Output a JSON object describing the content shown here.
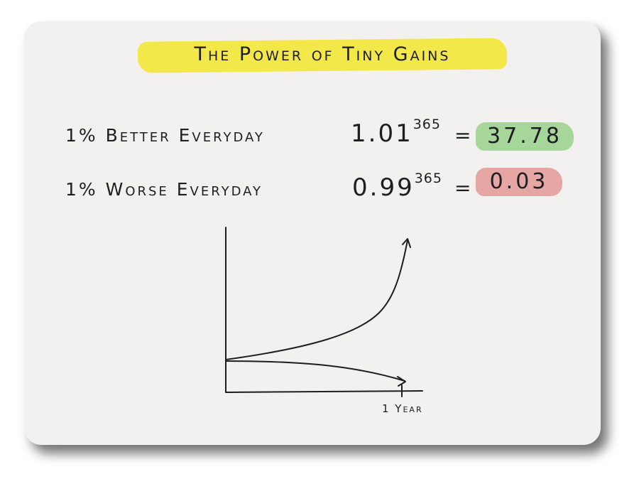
{
  "title": "The Power of Tiny Gains",
  "rows": [
    {
      "label": "1% Better Everyday",
      "base": "1.01",
      "exponent": "365",
      "equals": "=",
      "result": "37.78",
      "highlight_color": "#a7d69b"
    },
    {
      "label": "1% Worse Everyday",
      "base": "0.99",
      "exponent": "365",
      "equals": "=",
      "result": "0.03",
      "highlight_color": "#e6a7a4"
    }
  ],
  "chart": {
    "x_label": "1 Year",
    "curves": [
      "growth",
      "decline"
    ]
  },
  "colors": {
    "title_highlight": "#f3e84a",
    "ink": "#1e1e22",
    "card": "#f2f1ef"
  }
}
